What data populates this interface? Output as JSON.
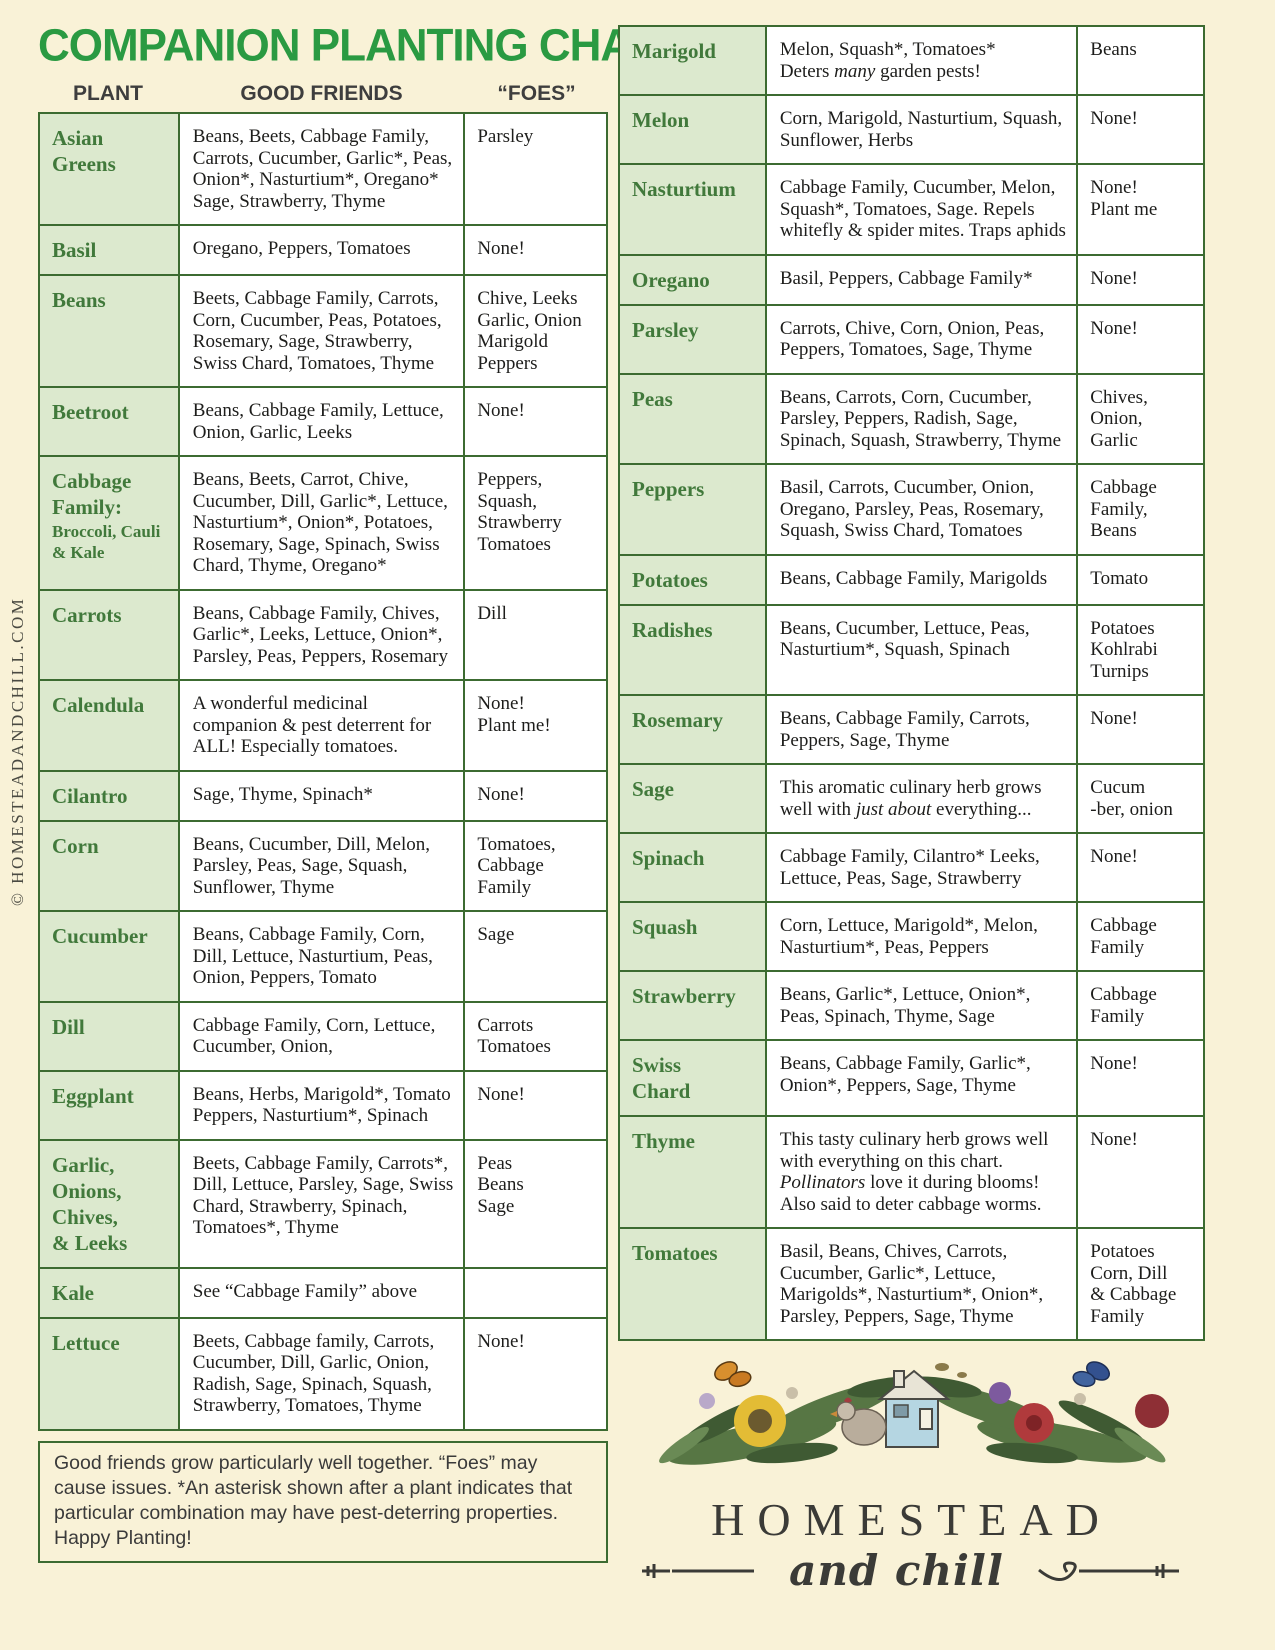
{
  "page": {
    "title": "COMPANION PLANTING CHART",
    "watermark": "© HOMESTEADANDCHILL.COM",
    "columns": {
      "plant": "PLANT",
      "friends": "GOOD FRIENDS",
      "foes": "“FOES”"
    },
    "footnote": "Good friends grow particularly well together. “Foes” may cause issues. *An asterisk shown after a plant indicates that particular combination may have pest-deterring properties. Happy Planting!"
  },
  "left_table": {
    "rows": [
      {
        "plant": "Asian\nGreens",
        "friends": "Beans, Beets, Cabbage Family, Carrots, Cucumber, Garlic*, Peas, Onion*, Nasturtium*, Oregano* Sage, Strawberry, Thyme",
        "foes": "Parsley"
      },
      {
        "plant": "Basil",
        "friends": "Oregano, Peppers, Tomatoes",
        "foes": "None!"
      },
      {
        "plant": "Beans",
        "friends": "Beets, Cabbage Family, Carrots, Corn, Cucumber, Peas, Potatoes, Rosemary, Sage, Strawberry, Swiss Chard, Tomatoes, Thyme",
        "foes": "Chive, Leeks\nGarlic, Onion\nMarigold\nPeppers"
      },
      {
        "plant": "Beetroot",
        "friends": "Beans, Cabbage Family, Lettuce, Onion, Garlic, Leeks",
        "foes": "None!"
      },
      {
        "plant": "Cabbage\nFamily:",
        "plant_sub": "Broccoli,\nCauli & Kale",
        "friends": "Beans, Beets, Carrot, Chive, Cucumber, Dill, Garlic*, Lettuce, Nasturtium*, Onion*, Potatoes, Rosemary, Sage, Spinach, Swiss Chard, Thyme, Oregano*",
        "foes": "Peppers, Squash, Strawberry Tomatoes"
      },
      {
        "plant": "Carrots",
        "friends": "Beans, Cabbage Family, Chives, Garlic*, Leeks, Lettuce, Onion*, Parsley, Peas, Peppers, Rosemary",
        "foes": "Dill"
      },
      {
        "plant": "Calendula",
        "friends": "A wonderful medicinal companion & pest deterrent for ALL! Especially tomatoes.",
        "foes": "None!\nPlant me!"
      },
      {
        "plant": "Cilantro",
        "friends": "Sage, Thyme, Spinach*",
        "foes": "None!"
      },
      {
        "plant": "Corn",
        "friends": "Beans, Cucumber, Dill, Melon, Parsley, Peas, Sage, Squash, Sunflower, Thyme",
        "foes": "Tomatoes, Cabbage Family"
      },
      {
        "plant": "Cucumber",
        "friends": "Beans, Cabbage Family, Corn, Dill, Lettuce, Nasturtium, Peas, Onion, Peppers, Tomato",
        "foes": "Sage"
      },
      {
        "plant": "Dill",
        "friends": "Cabbage Family, Corn, Lettuce, Cucumber, Onion,",
        "foes": "Carrots\nTomatoes"
      },
      {
        "plant": "Eggplant",
        "friends": "Beans, Herbs, Marigold*, Tomato Peppers, Nasturtium*, Spinach",
        "foes": "None!"
      },
      {
        "plant": "Garlic,\nOnions,\nChives,\n& Leeks",
        "friends": "Beets, Cabbage Family, Carrots*, Dill, Lettuce, Parsley, Sage, Swiss Chard, Strawberry, Spinach, Tomatoes*, Thyme",
        "foes": "Peas\nBeans\nSage"
      },
      {
        "plant": "Kale",
        "friends": "See “Cabbage Family” above",
        "foes": ""
      },
      {
        "plant": "Lettuce",
        "friends": "Beets, Cabbage family, Carrots, Cucumber, Dill, Garlic, Onion, Radish, Sage, Spinach, Squash, Strawberry, Tomatoes, Thyme",
        "foes": "None!"
      }
    ]
  },
  "right_table": {
    "rows": [
      {
        "plant": "Marigold",
        "friends": [
          {
            "t": "Melon, Squash*, Tomatoes*\nDeters "
          },
          {
            "t": "many",
            "i": true
          },
          {
            "t": " garden pests!"
          }
        ],
        "foes": "Beans"
      },
      {
        "plant": "Melon",
        "friends": "Corn, Marigold, Nasturtium, Squash, Sunflower, Herbs",
        "foes": "None!"
      },
      {
        "plant": "Nasturtium",
        "friends": "Cabbage Family, Cucumber, Melon, Squash*, Tomatoes, Sage. Repels whitefly & spider mites. Traps aphids",
        "foes": "None!\nPlant me"
      },
      {
        "plant": "Oregano",
        "friends": "Basil, Peppers, Cabbage Family*",
        "foes": "None!"
      },
      {
        "plant": "Parsley",
        "friends": "Carrots, Chive, Corn, Onion, Peas, Peppers, Tomatoes, Sage, Thyme",
        "foes": "None!"
      },
      {
        "plant": "Peas",
        "friends": "Beans, Carrots, Corn, Cucumber, Parsley, Peppers, Radish, Sage, Spinach, Squash, Strawberry, Thyme",
        "foes": "Chives,\nOnion,\nGarlic"
      },
      {
        "plant": "Peppers",
        "friends": "Basil, Carrots, Cucumber, Onion, Oregano, Parsley, Peas, Rosemary, Squash, Swiss Chard, Tomatoes",
        "foes": "Cabbage Family, Beans"
      },
      {
        "plant": "Potatoes",
        "friends": "Beans, Cabbage Family, Marigolds",
        "foes": "Tomato"
      },
      {
        "plant": "Radishes",
        "friends": "Beans, Cucumber, Lettuce, Peas, Nasturtium*, Squash, Spinach",
        "foes": "Potatoes\nKohlrabi\nTurnips"
      },
      {
        "plant": "Rosemary",
        "friends": "Beans, Cabbage Family, Carrots, Peppers, Sage, Thyme",
        "foes": "None!"
      },
      {
        "plant": "Sage",
        "friends": [
          {
            "t": "This aromatic culinary herb grows well with "
          },
          {
            "t": "just about",
            "i": true
          },
          {
            "t": " everything..."
          }
        ],
        "foes": "Cucum\n-ber, onion"
      },
      {
        "plant": "Spinach",
        "friends": "Cabbage Family, Cilantro* Leeks, Lettuce, Peas, Sage, Strawberry",
        "foes": "None!"
      },
      {
        "plant": "Squash",
        "friends": "Corn, Lettuce, Marigold*, Melon, Nasturtium*, Peas, Peppers",
        "foes": "Cabbage Family"
      },
      {
        "plant": "Strawberry",
        "friends": "Beans, Garlic*, Lettuce, Onion*, Peas, Spinach, Thyme, Sage",
        "foes": "Cabbage Family"
      },
      {
        "plant": "Swiss\nChard",
        "friends": "Beans, Cabbage Family, Garlic*, Onion*, Peppers, Sage, Thyme",
        "foes": "None!"
      },
      {
        "plant": "Thyme",
        "friends": [
          {
            "t": "This tasty culinary herb grows well with everything on this chart. "
          },
          {
            "t": "Pollinators",
            "i": true
          },
          {
            "t": " love it during blooms! Also said to deter cabbage worms."
          }
        ],
        "foes": "None!"
      },
      {
        "plant": "Tomatoes",
        "friends": "Basil, Beans, Chives, Carrots, Cucumber, Garlic*, Lettuce, Marigolds*, Nasturtium*, Onion*, Parsley, Peppers, Sage, Thyme",
        "foes": "Potatoes\nCorn, Dill\n& Cabbage\nFamily"
      }
    ]
  },
  "logo": {
    "line1": "HOMESTEAD",
    "line2": "and chill"
  },
  "colors": {
    "accent_green": "#2A9A42",
    "border_green": "#3C6B31",
    "cell_green": "#DCE9CE",
    "background": "#F9F2D7"
  }
}
